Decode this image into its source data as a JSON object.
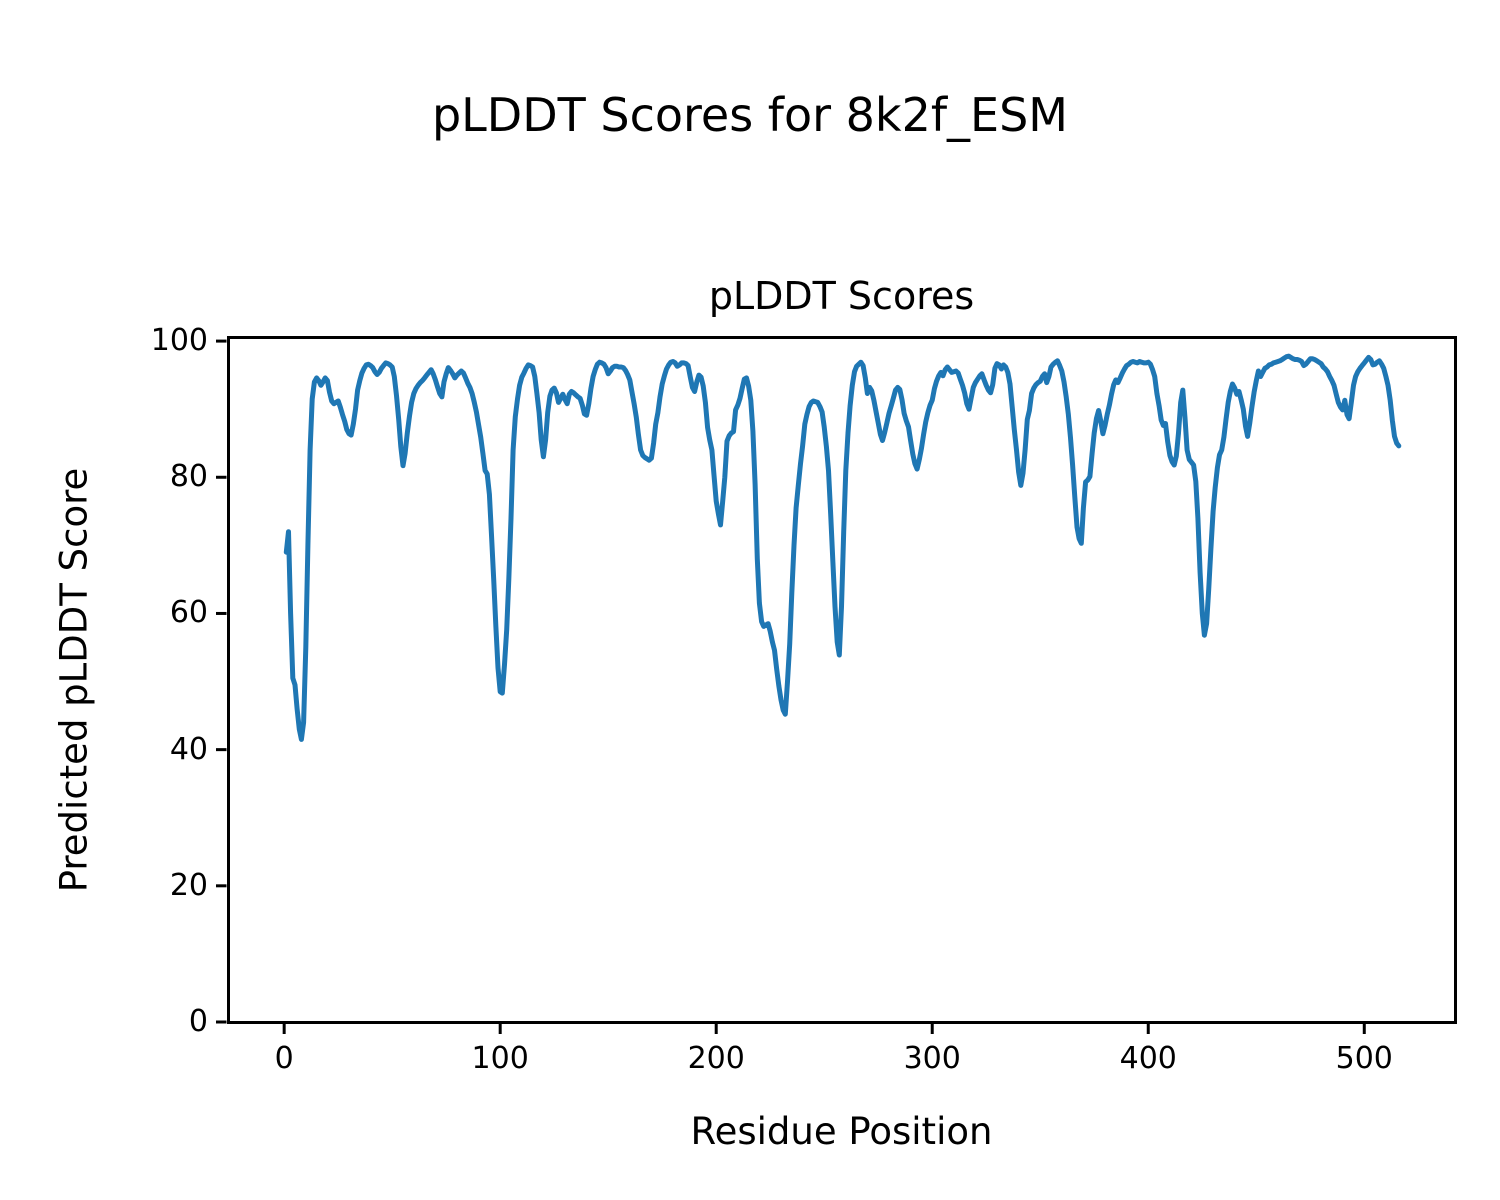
{
  "figure": {
    "background_color": "#ffffff",
    "text_color": "#000000",
    "spine_color": "#000000"
  },
  "chart_data": {
    "type": "line",
    "suptitle": "pLDDT Scores for 8k2f_ESM",
    "title": "pLDDT Scores",
    "xlabel": "Residue Position",
    "ylabel": "Predicted pLDDT Score",
    "xlim": [
      -26,
      542
    ],
    "ylim": [
      0,
      100.6
    ],
    "xticks": [
      0,
      100,
      200,
      300,
      400,
      500
    ],
    "yticks": [
      0,
      20,
      40,
      60,
      80,
      100
    ],
    "grid": false,
    "legend": null,
    "line_color": "#1f77b4",
    "line_width": 5,
    "series": [
      {
        "name": "pLDDT",
        "x_start": 1,
        "x_step": 1,
        "values": [
          69,
          72,
          60,
          50.5,
          49.5,
          46,
          43,
          41.5,
          44,
          55,
          70,
          84,
          91.5,
          94,
          94.6,
          94.2,
          93.5,
          94,
          94.6,
          94.2,
          92.5,
          91.2,
          90.8,
          91,
          91.2,
          90.3,
          89.2,
          88.2,
          87,
          86.4,
          86.2,
          87.8,
          90,
          92.8,
          94.2,
          95.3,
          96,
          96.5,
          96.6,
          96.4,
          96.1,
          95.5,
          95.1,
          95.4,
          96,
          96.4,
          96.8,
          96.7,
          96.5,
          96.2,
          94.8,
          92,
          88.5,
          84.5,
          81.7,
          83.5,
          86.5,
          89,
          91,
          92.3,
          93,
          93.5,
          93.9,
          94.2,
          94.6,
          95,
          95.4,
          95.8,
          95.2,
          94.3,
          93.3,
          92.3,
          91.8,
          94,
          95.2,
          96.1,
          95.7,
          95.2,
          94.6,
          95,
          95.3,
          95.6,
          95.3,
          94.6,
          93.8,
          93.2,
          92.3,
          91,
          89.6,
          87.7,
          85.9,
          83.5,
          81,
          80.5,
          77.5,
          71.5,
          65,
          58,
          52,
          48.5,
          48.3,
          52.5,
          57.6,
          65,
          74,
          84,
          88.9,
          91.5,
          93.5,
          94.7,
          95.3,
          96,
          96.5,
          96.4,
          96.2,
          94.8,
          92.3,
          89.5,
          85.5,
          83,
          85.5,
          89.5,
          91.9,
          92.8,
          93.1,
          92.4,
          91,
          91.6,
          92.2,
          91.4,
          90.8,
          92.2,
          92.6,
          92.4,
          92.1,
          91.8,
          91.6,
          90.6,
          89.3,
          89.1,
          90.8,
          93,
          94.8,
          95.8,
          96.6,
          96.9,
          96.8,
          96.6,
          96.1,
          95.2,
          95.6,
          96.1,
          96.3,
          96.3,
          96.2,
          96.2,
          96.1,
          95.7,
          95.1,
          94.3,
          92.5,
          90.8,
          88.8,
          86.3,
          84,
          83.2,
          82.9,
          82.7,
          82.5,
          82.8,
          85,
          87.8,
          89.5,
          91.8,
          93.7,
          94.9,
          95.9,
          96.5,
          96.9,
          97,
          96.8,
          96.3,
          96.5,
          96.8,
          96.8,
          96.7,
          96.4,
          94.7,
          93.2,
          92.6,
          94,
          95,
          94.7,
          93.4,
          91,
          87.3,
          85.5,
          84,
          80.3,
          76.5,
          74.6,
          73,
          76.5,
          80,
          85.3,
          86.1,
          86.5,
          86.7,
          89.9,
          90.6,
          91.6,
          93,
          94.4,
          94.6,
          93.4,
          91.3,
          86.8,
          79,
          68,
          61.5,
          58.8,
          58.1,
          58.3,
          58.5,
          57.4,
          55.8,
          54.6,
          51.8,
          49.3,
          47.3,
          45.8,
          45.2,
          50,
          55.5,
          63,
          70,
          75.5,
          78.8,
          82,
          84.6,
          87.8,
          89.2,
          90.4,
          91,
          91.2,
          91.1,
          91,
          90.4,
          89.6,
          87.4,
          84.5,
          81,
          74.5,
          67.5,
          61,
          55.8,
          53.9,
          61,
          72,
          81,
          86.5,
          90.5,
          93.5,
          95.5,
          96.3,
          96.6,
          96.9,
          96.4,
          94.6,
          92.3,
          93.2,
          92.7,
          91.3,
          89.6,
          88,
          86.3,
          85.4,
          86.6,
          88,
          89.4,
          90.5,
          91.6,
          92.8,
          93.2,
          92.9,
          91.4,
          89.4,
          88.3,
          87.4,
          85.4,
          83.4,
          82,
          81.2,
          82.6,
          84.2,
          86.3,
          88.1,
          89.5,
          90.6,
          91.3,
          93,
          94.1,
          94.9,
          95.4,
          94.9,
          95.8,
          96.2,
          95.8,
          95.4,
          95.5,
          95.6,
          95.3,
          94.4,
          93.5,
          92.4,
          90.8,
          90,
          91.6,
          93.2,
          93.9,
          94.4,
          94.9,
          95.2,
          94.3,
          93.5,
          92.8,
          92.4,
          93.6,
          96,
          96.7,
          96.5,
          95.9,
          96.5,
          96.2,
          95.4,
          93.7,
          90.3,
          87,
          84,
          80.8,
          78.8,
          80.6,
          84,
          88.5,
          89.8,
          92.3,
          93.1,
          93.6,
          93.9,
          94.1,
          94.8,
          95.2,
          93.9,
          94.8,
          96.2,
          96.6,
          96.9,
          97.1,
          96.4,
          95.6,
          94,
          91.8,
          89.3,
          85.8,
          81.8,
          77.1,
          72.7,
          71,
          70.3,
          75.5,
          79.3,
          79.6,
          80.1,
          83.5,
          86.5,
          88.6,
          89.8,
          88.3,
          86.4,
          87.6,
          89.2,
          90.6,
          92.2,
          93.6,
          94.3,
          93.9,
          94.6,
          95.3,
          95.9,
          96.4,
          96.6,
          96.9,
          97,
          96.9,
          96.8,
          97,
          96.9,
          96.8,
          96.8,
          96.9,
          96.6,
          95.8,
          94.8,
          92.3,
          90.5,
          88.4,
          87.6,
          87.9,
          85.2,
          83.2,
          82.3,
          81.8,
          83.1,
          86.5,
          91,
          92.8,
          88.7,
          84,
          82.6,
          82.2,
          81.8,
          79.4,
          74,
          66,
          60,
          56.8,
          58.5,
          63.5,
          69.5,
          75,
          78.5,
          81.4,
          83.3,
          84,
          85.9,
          88.5,
          91,
          92.6,
          93.7,
          93.1,
          92.2,
          92.6,
          91.4,
          90,
          87.5,
          86,
          88,
          90.3,
          92.5,
          94.2,
          95.6,
          94.8,
          95.4,
          96,
          96.2,
          96.5,
          96.6,
          96.8,
          96.9,
          97,
          97.1,
          97.3,
          97.5,
          97.7,
          97.8,
          97.6,
          97.4,
          97.3,
          97.3,
          97.2,
          97,
          96.4,
          96.6,
          97,
          97.4,
          97.4,
          97.3,
          97.1,
          96.9,
          96.7,
          96.2,
          95.9,
          95.5,
          94.8,
          94.2,
          93.5,
          92.2,
          91,
          90.3,
          89.9,
          91.3,
          89.2,
          88.6,
          91,
          93.5,
          94.8,
          95.5,
          96,
          96.4,
          96.8,
          97.2,
          97.6,
          97.3,
          96.5,
          96.6,
          96.9,
          97.1,
          96.6,
          96,
          94.8,
          93.5,
          91.3,
          88.3,
          86,
          85,
          84.6
        ]
      }
    ]
  }
}
